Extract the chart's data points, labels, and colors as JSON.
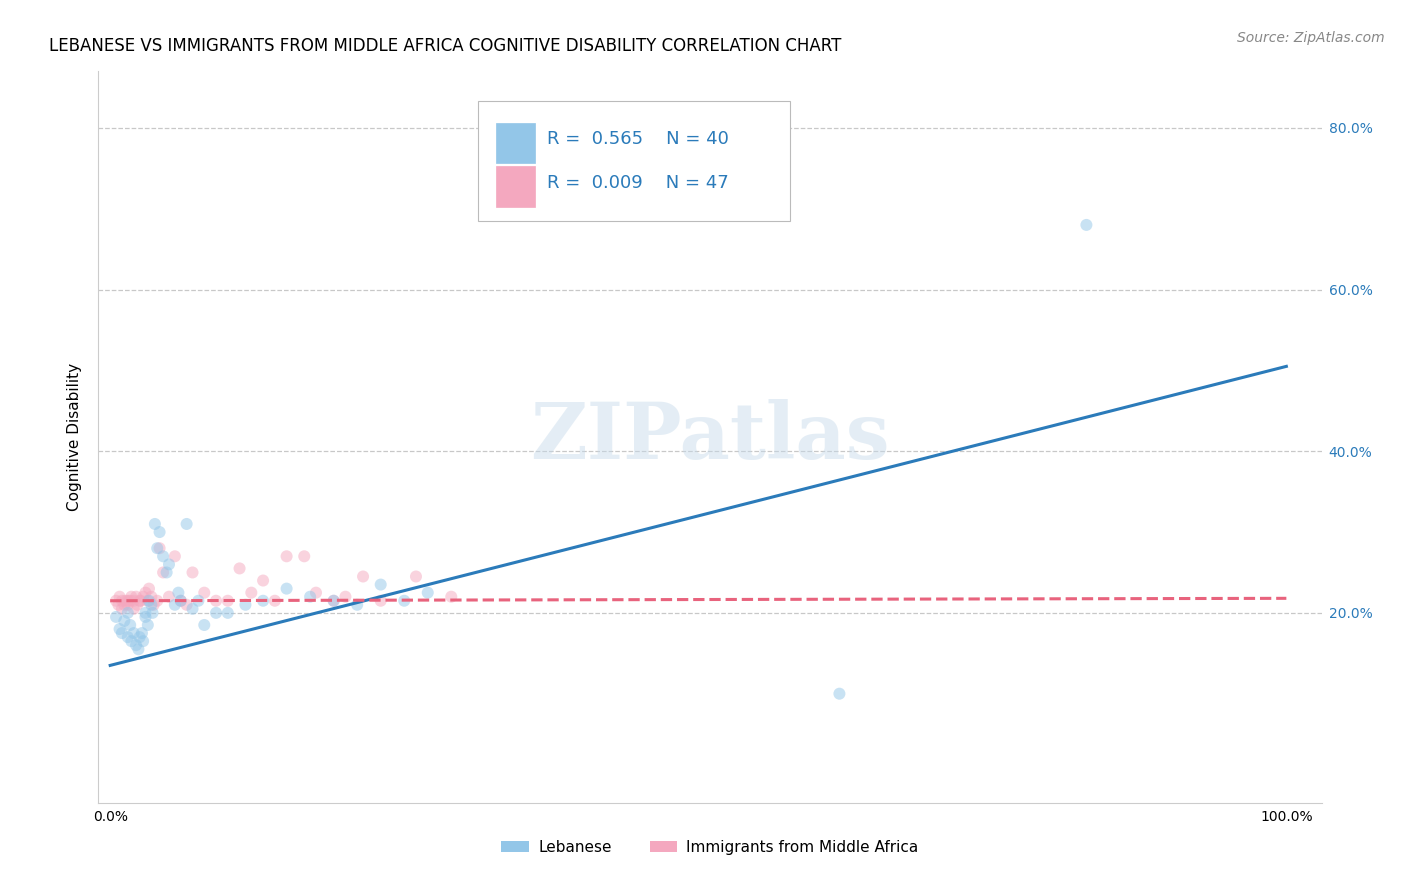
{
  "title": "LEBANESE VS IMMIGRANTS FROM MIDDLE AFRICA COGNITIVE DISABILITY CORRELATION CHART",
  "source": "Source: ZipAtlas.com",
  "ylabel": "Cognitive Disability",
  "watermark": "ZIPatlas",
  "color_blue": "#93c6e8",
  "color_pink": "#f4a8bf",
  "color_blue_line": "#2b7bba",
  "color_pink_line": "#e8637d",
  "legend_label1": "Lebanese",
  "legend_label2": "Immigrants from Middle Africa",
  "xmin": -0.01,
  "xmax": 1.03,
  "ymin": -0.035,
  "ymax": 0.87,
  "blue_scatter_x": [
    0.005,
    0.008,
    0.01,
    0.012,
    0.015,
    0.015,
    0.017,
    0.018,
    0.02,
    0.022,
    0.024,
    0.025,
    0.027,
    0.028,
    0.03,
    0.03,
    0.032,
    0.033,
    0.035,
    0.036,
    0.038,
    0.04,
    0.042,
    0.045,
    0.048,
    0.05,
    0.055,
    0.058,
    0.06,
    0.065,
    0.07,
    0.075,
    0.08,
    0.09,
    0.1,
    0.115,
    0.13,
    0.15,
    0.17,
    0.19,
    0.21,
    0.23,
    0.25,
    0.27,
    0.62,
    0.83
  ],
  "blue_scatter_y": [
    0.195,
    0.18,
    0.175,
    0.19,
    0.2,
    0.17,
    0.185,
    0.165,
    0.175,
    0.16,
    0.155,
    0.17,
    0.175,
    0.165,
    0.2,
    0.195,
    0.185,
    0.215,
    0.21,
    0.2,
    0.31,
    0.28,
    0.3,
    0.27,
    0.25,
    0.26,
    0.21,
    0.225,
    0.215,
    0.31,
    0.205,
    0.215,
    0.185,
    0.2,
    0.2,
    0.21,
    0.215,
    0.23,
    0.22,
    0.215,
    0.21,
    0.235,
    0.215,
    0.225,
    0.1,
    0.68
  ],
  "pink_scatter_x": [
    0.005,
    0.007,
    0.008,
    0.01,
    0.01,
    0.012,
    0.013,
    0.015,
    0.015,
    0.017,
    0.018,
    0.02,
    0.02,
    0.022,
    0.023,
    0.025,
    0.026,
    0.028,
    0.03,
    0.032,
    0.033,
    0.035,
    0.037,
    0.04,
    0.042,
    0.045,
    0.05,
    0.055,
    0.06,
    0.065,
    0.07,
    0.08,
    0.09,
    0.1,
    0.11,
    0.12,
    0.13,
    0.14,
    0.15,
    0.165,
    0.175,
    0.19,
    0.2,
    0.215,
    0.23,
    0.26,
    0.29
  ],
  "pink_scatter_y": [
    0.215,
    0.21,
    0.22,
    0.215,
    0.205,
    0.21,
    0.215,
    0.215,
    0.21,
    0.215,
    0.22,
    0.215,
    0.205,
    0.22,
    0.21,
    0.215,
    0.215,
    0.22,
    0.225,
    0.215,
    0.23,
    0.22,
    0.21,
    0.215,
    0.28,
    0.25,
    0.22,
    0.27,
    0.215,
    0.21,
    0.25,
    0.225,
    0.215,
    0.215,
    0.255,
    0.225,
    0.24,
    0.215,
    0.27,
    0.27,
    0.225,
    0.215,
    0.22,
    0.245,
    0.215,
    0.245,
    0.22
  ],
  "blue_line_x": [
    0.0,
    1.0
  ],
  "blue_line_y": [
    0.135,
    0.505
  ],
  "pink_line_x": [
    0.0,
    1.0
  ],
  "pink_line_y": [
    0.215,
    0.218
  ],
  "yticks": [
    0.0,
    0.2,
    0.4,
    0.6,
    0.8
  ],
  "ytick_right_labels": [
    "",
    "20.0%",
    "40.0%",
    "60.0%",
    "80.0%"
  ],
  "grid_yticks": [
    0.2,
    0.4,
    0.6,
    0.8
  ],
  "title_fontsize": 12,
  "source_fontsize": 10,
  "axis_label_fontsize": 11,
  "tick_fontsize": 10,
  "legend_fontsize": 13,
  "watermark_fontsize": 56,
  "scatter_size": 75,
  "scatter_alpha": 0.5,
  "line_width": 2.2
}
